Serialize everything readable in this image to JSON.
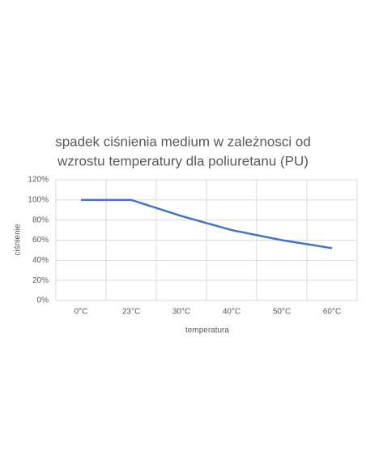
{
  "chart_data": {
    "type": "line",
    "title": [
      "spadek ciśnienia medium w zależnosci od",
      "wzrostu temperatury dla poliuretanu (PU)"
    ],
    "x_label": "temperatura",
    "y_label": "ciśnienie",
    "categories": [
      "0°C",
      "23°C",
      "30°C",
      "40°C",
      "50°C",
      "60°C"
    ],
    "values": [
      100,
      100,
      84,
      70,
      60,
      52
    ],
    "color": "#4472c4",
    "ylim": [
      0,
      120
    ],
    "yticks": [
      {
        "value": 0,
        "label": "0%"
      },
      {
        "value": 20,
        "label": "20%"
      },
      {
        "value": 40,
        "label": "40%"
      },
      {
        "value": 60,
        "label": "60%"
      },
      {
        "value": 80,
        "label": "80%"
      },
      {
        "value": 100,
        "label": "100%"
      },
      {
        "value": 120,
        "label": "120%"
      }
    ],
    "grid": true
  }
}
